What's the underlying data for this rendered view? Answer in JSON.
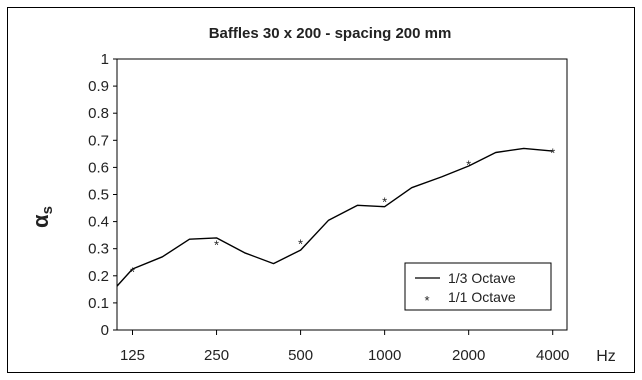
{
  "chart_data": {
    "type": "line",
    "title": "Baffles 30 x 200 - spacing 200 mm",
    "xlabel": "Hz",
    "ylabel": "αs",
    "ylabel_symbol": "α",
    "ylabel_subscript": "s",
    "x_scale": "log2",
    "xlim": [
      110,
      4500
    ],
    "ylim": [
      0,
      1
    ],
    "y_ticks": [
      "0",
      "0.1",
      "0.2",
      "0.3",
      "0.4",
      "0.5",
      "0.6",
      "0.7",
      "0.8",
      "0.9",
      "1"
    ],
    "x_ticks": [
      "125",
      "250",
      "500",
      "1000",
      "2000",
      "4000"
    ],
    "grid": false,
    "legend_position": "bottom-right",
    "series": [
      {
        "name": "1/3 Octave",
        "style": "line",
        "color": "#000000",
        "x": [
          100,
          125,
          160,
          200,
          250,
          315,
          400,
          500,
          630,
          800,
          1000,
          1250,
          1600,
          2000,
          2500,
          3150,
          4000
        ],
        "y": [
          0.115,
          0.225,
          0.27,
          0.335,
          0.34,
          0.285,
          0.245,
          0.295,
          0.405,
          0.46,
          0.455,
          0.525,
          0.565,
          0.605,
          0.655,
          0.67,
          0.66
        ]
      },
      {
        "name": "1/1 Octave",
        "style": "marker",
        "marker": "*",
        "color": "#8c8c8c",
        "x": [
          125,
          250,
          500,
          1000,
          2000,
          4000
        ],
        "y": [
          0.215,
          0.315,
          0.32,
          0.475,
          0.61,
          0.655
        ]
      }
    ]
  }
}
